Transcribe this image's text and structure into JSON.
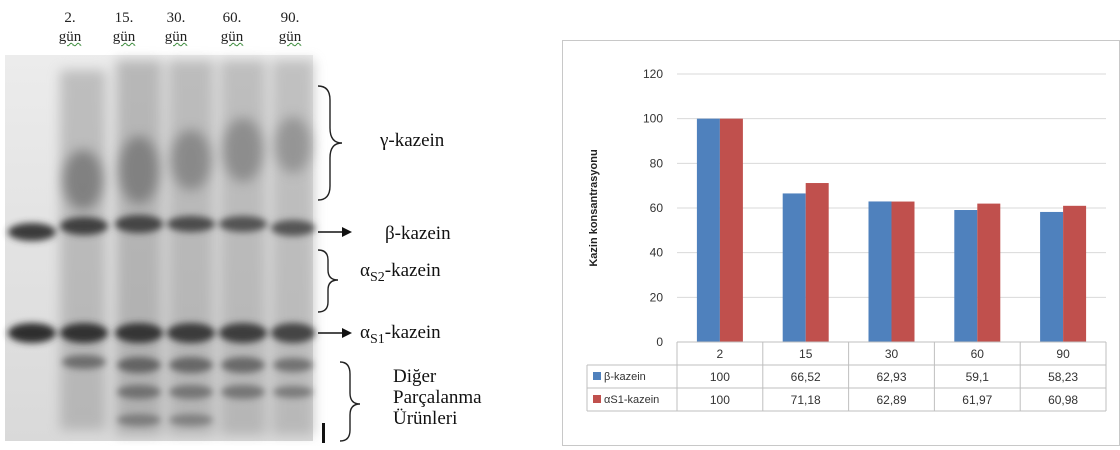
{
  "gel": {
    "lanes": [
      {
        "num": "2.",
        "unit": "gün"
      },
      {
        "num": "15.",
        "unit": "gün"
      },
      {
        "num": "30.",
        "unit": "gün"
      },
      {
        "num": "60.",
        "unit": "gün"
      },
      {
        "num": "90.",
        "unit": "gün"
      }
    ],
    "bands": {
      "gamma": "γ-kazein",
      "beta": "β-kazein",
      "as2_prefix": "α",
      "as2_sub": "S2",
      "as2_suffix": "-kazein",
      "as1_prefix": "α",
      "as1_sub": "S1",
      "as1_suffix": "-kazein",
      "other_1": "Diğer",
      "other_2": "Parçalanma",
      "other_3": "Ürünleri"
    }
  },
  "chart_data": {
    "type": "bar",
    "ylabel": "Kazin konsantrasyonu",
    "xlabel": "",
    "ylim": [
      0,
      120
    ],
    "yticks": [
      "0",
      "20",
      "40",
      "60",
      "80",
      "100",
      "120"
    ],
    "categories": [
      "2",
      "15",
      "30",
      "60",
      "90"
    ],
    "series": [
      {
        "name": "β-kazein",
        "color": "#4f81bd",
        "values": [
          100,
          66.52,
          62.93,
          59.1,
          58.23
        ],
        "labels": [
          "100",
          "66,52",
          "62,93",
          "59,1",
          "58,23"
        ]
      },
      {
        "name": "αS1-kazein",
        "color": "#c0504d",
        "values": [
          100,
          71.18,
          62.89,
          61.97,
          60.98
        ],
        "labels": [
          "100",
          "71,18",
          "62,89",
          "61,97",
          "60,98"
        ]
      }
    ],
    "grid": true,
    "legend": "table-below"
  }
}
